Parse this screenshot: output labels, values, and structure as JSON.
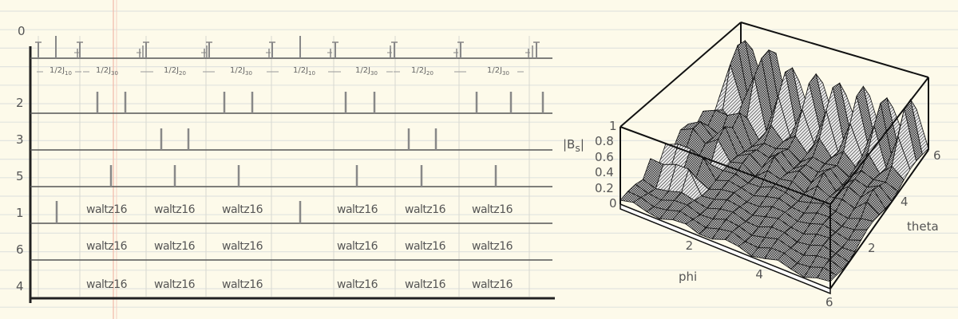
{
  "pulse_sequence": {
    "channels": [
      "0",
      "2",
      "3",
      "5",
      "1",
      "6",
      "4"
    ],
    "delays": [
      {
        "text": "1/2J",
        "sub": "10"
      },
      {
        "text": "1/2J",
        "sub": "30"
      },
      {
        "text": "1/2J",
        "sub": "20"
      },
      {
        "text": "1/2J",
        "sub": "30"
      },
      {
        "text": "1/2J",
        "sub": "10"
      },
      {
        "text": "1/2J",
        "sub": "30"
      },
      {
        "text": "1/2J",
        "sub": "20"
      },
      {
        "text": "1/2J",
        "sub": "30"
      }
    ],
    "decoupling_label": "waltz16"
  },
  "chart_data": {
    "type": "surface3d",
    "zlabel": "|B",
    "zlabel_sub": "s",
    "zlabel_end": "|",
    "xlabel": "phi",
    "ylabel": "theta",
    "z_ticks": [
      "0",
      "0.2",
      "0.4",
      "0.6",
      "0.8",
      "1"
    ],
    "x_ticks": [
      "2",
      "4",
      "6"
    ],
    "y_ticks": [
      "2",
      "4",
      "6"
    ],
    "zlim": [
      0,
      1
    ],
    "xlim": [
      0,
      6.28
    ],
    "ylim": [
      0,
      6.28
    ]
  },
  "colors": {
    "paper": "#fdfaea",
    "rule": "#dfe3e6",
    "margin": "#f2b8a8",
    "ink": "#555555"
  }
}
